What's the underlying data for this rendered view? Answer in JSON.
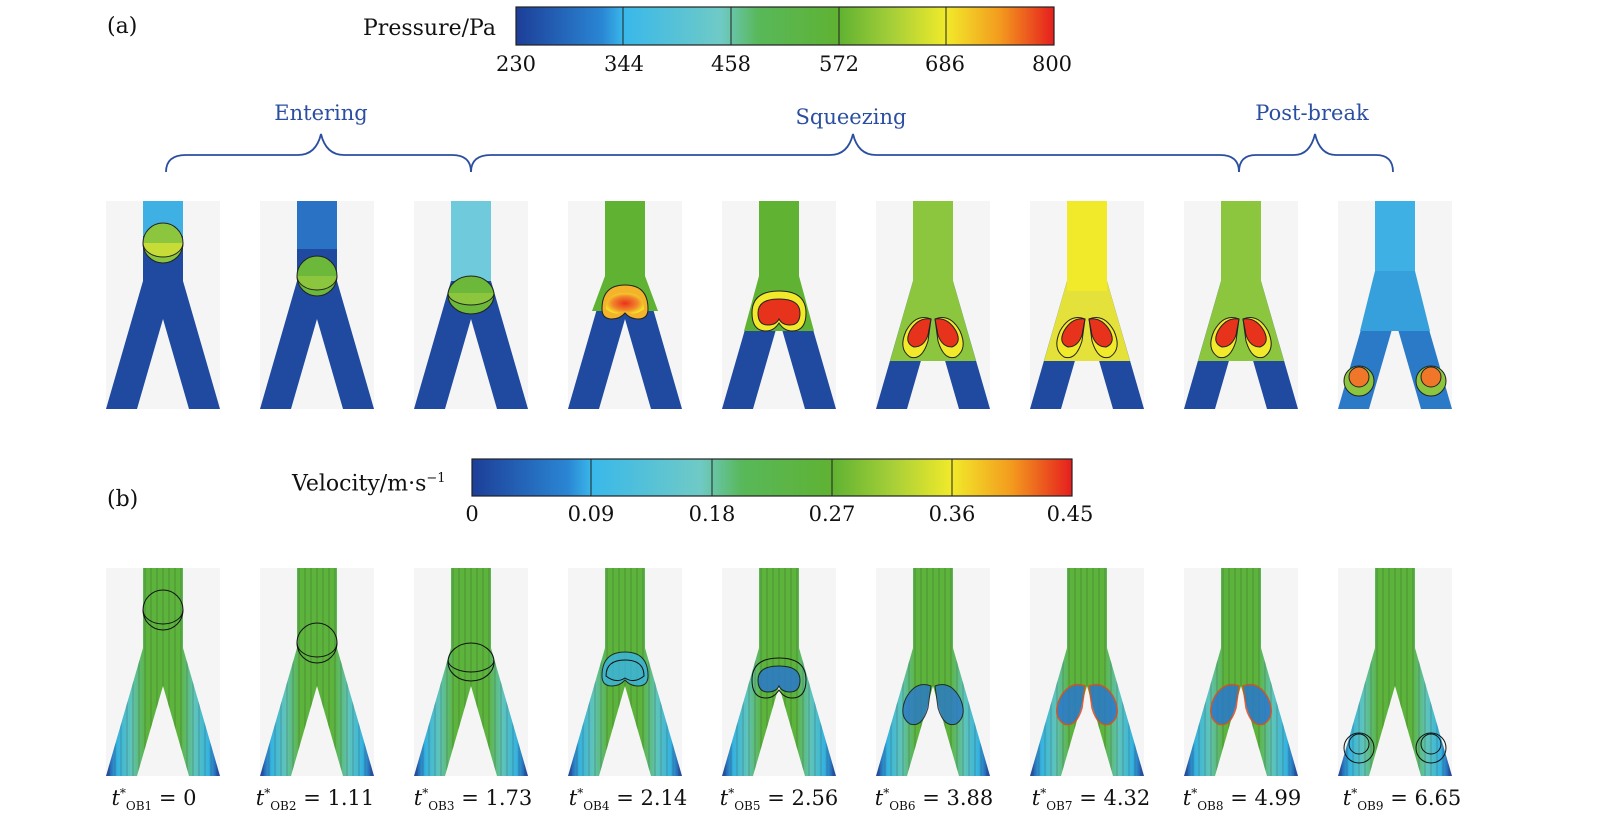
{
  "panel_a": {
    "label": "(a)",
    "colorbar": {
      "title": "Pressure/Pa",
      "ticks": [
        "230",
        "344",
        "458",
        "572",
        "686",
        "800"
      ],
      "colors": [
        "#1e3f9a",
        "#2fb6e6",
        "#6ec9c8",
        "#5fb23a",
        "#8cc63f",
        "#f1ea2a",
        "#f39a1e",
        "#e8231f"
      ]
    },
    "phases": [
      {
        "label": "Entering"
      },
      {
        "label": "Squeezing"
      },
      {
        "label": "Post-break"
      }
    ],
    "frame_colors": {
      "channel_dark": "#1f4aa0",
      "bg": "#f5f5f5"
    }
  },
  "panel_b": {
    "label": "(b)",
    "colorbar": {
      "title": "Velocity/m·s",
      "title_exp": "−1",
      "ticks": [
        "0",
        "0.09",
        "0.18",
        "0.27",
        "0.36",
        "0.45"
      ]
    },
    "times": [
      {
        "sym": "t",
        "sup": "*",
        "sub": "OB1",
        "value": "0"
      },
      {
        "sym": "t",
        "sup": "*",
        "sub": "OB2",
        "value": "1.11"
      },
      {
        "sym": "t",
        "sup": "*",
        "sub": "OB3",
        "value": "1.73"
      },
      {
        "sym": "t",
        "sup": "*",
        "sub": "OB4",
        "value": "2.14"
      },
      {
        "sym": "t",
        "sup": "*",
        "sub": "OB5",
        "value": "2.56"
      },
      {
        "sym": "t",
        "sup": "*",
        "sub": "OB6",
        "value": "3.88"
      },
      {
        "sym": "t",
        "sup": "*",
        "sub": "OB7",
        "value": "4.32"
      },
      {
        "sym": "t",
        "sup": "*",
        "sub": "OB8",
        "value": "4.99"
      },
      {
        "sym": "t",
        "sup": "*",
        "sub": "OB9",
        "value": "6.65"
      }
    ]
  }
}
